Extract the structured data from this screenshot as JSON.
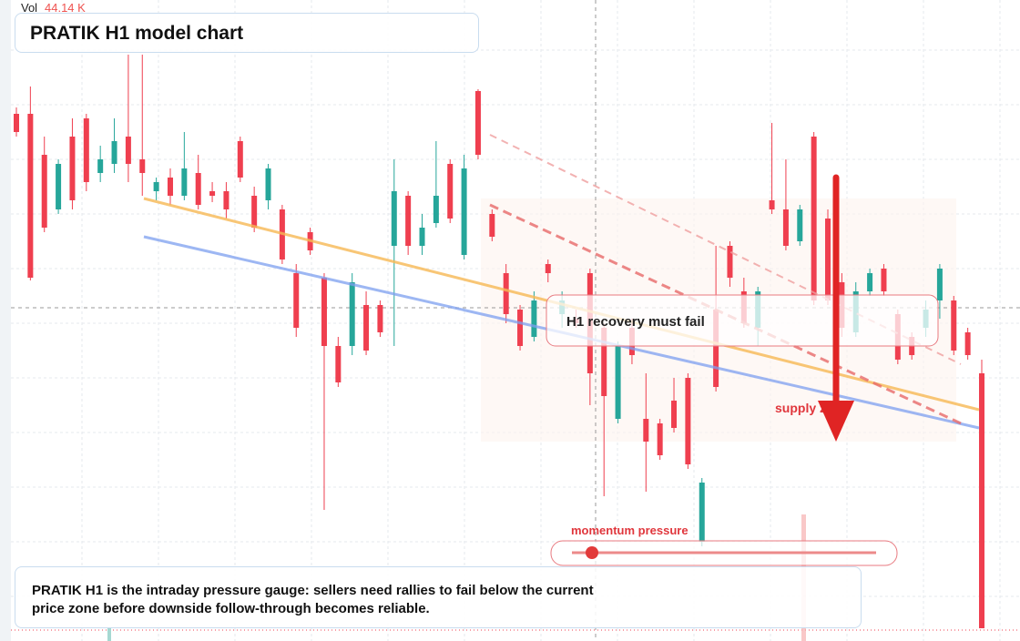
{
  "chart_data": {
    "type": "candlestick",
    "title": "PRATIK H1 model chart",
    "volume_label": "Vol",
    "volume_value": "44.14 K",
    "callout": "H1 recovery must fail",
    "zone_label": "supply zone",
    "gauge_label": "momentum pressure",
    "note": "PRATIK H1 is the intraday pressure gauge: sellers need rallies to fail below the current price zone before downside follow-through becomes reliable.",
    "up_color": "#26a69a",
    "down_color": "#ef3f4f",
    "ylim": [
      0,
      700
    ],
    "candles": [
      [
        575,
        582,
        550,
        555
      ],
      [
        575,
        605,
        392,
        395
      ],
      [
        530,
        550,
        445,
        450
      ],
      [
        470,
        525,
        465,
        520
      ],
      [
        550,
        570,
        470,
        480
      ],
      [
        570,
        575,
        490,
        500
      ],
      [
        510,
        540,
        500,
        525
      ],
      [
        520,
        570,
        510,
        545
      ],
      [
        550,
        640,
        500,
        520
      ],
      [
        525,
        640,
        485,
        510
      ],
      [
        490,
        505,
        480,
        500
      ],
      [
        505,
        515,
        475,
        485
      ],
      [
        485,
        555,
        480,
        515
      ],
      [
        510,
        530,
        470,
        475
      ],
      [
        490,
        500,
        478,
        485
      ],
      [
        490,
        500,
        460,
        470
      ],
      [
        545,
        550,
        500,
        505
      ],
      [
        485,
        495,
        445,
        450
      ],
      [
        480,
        520,
        470,
        515
      ],
      [
        470,
        475,
        410,
        415
      ],
      [
        400,
        410,
        330,
        340
      ],
      [
        445,
        450,
        420,
        425
      ],
      [
        395,
        400,
        140,
        320
      ],
      [
        320,
        330,
        275,
        280
      ],
      [
        320,
        400,
        310,
        390
      ],
      [
        365,
        380,
        310,
        315
      ],
      [
        365,
        370,
        330,
        335
      ],
      [
        430,
        525,
        320,
        490
      ],
      [
        485,
        490,
        420,
        430
      ],
      [
        430,
        465,
        420,
        450
      ],
      [
        455,
        545,
        450,
        485
      ],
      [
        520,
        525,
        455,
        460
      ],
      [
        420,
        530,
        415,
        515
      ],
      [
        600,
        602,
        525,
        530
      ],
      [
        465,
        470,
        435,
        440
      ],
      [
        400,
        410,
        345,
        355
      ],
      [
        360,
        365,
        315,
        320
      ],
      [
        330,
        380,
        325,
        370
      ],
      [
        410,
        415,
        390,
        400
      ],
      [
        355,
        380,
        340,
        370
      ],
      [
        350,
        360,
        340,
        345
      ],
      [
        400,
        405,
        255,
        290
      ],
      [
        340,
        345,
        155,
        265
      ],
      [
        240,
        325,
        235,
        320
      ],
      [
        340,
        350,
        300,
        310
      ],
      [
        240,
        290,
        160,
        215
      ],
      [
        235,
        240,
        195,
        200
      ],
      [
        260,
        285,
        225,
        230
      ],
      [
        285,
        290,
        185,
        190
      ],
      [
        105,
        175,
        100,
        170
      ],
      [
        360,
        430,
        270,
        275
      ],
      [
        430,
        435,
        385,
        395
      ],
      [
        380,
        395,
        340,
        345
      ],
      [
        340,
        385,
        320,
        380
      ],
      [
        480,
        565,
        465,
        470
      ],
      [
        470,
        525,
        425,
        430
      ],
      [
        435,
        475,
        430,
        470
      ],
      [
        550,
        555,
        365,
        370
      ],
      [
        460,
        470,
        365,
        370
      ],
      [
        390,
        400,
        330,
        340
      ],
      [
        335,
        390,
        330,
        380
      ],
      [
        380,
        405,
        375,
        400
      ],
      [
        405,
        410,
        375,
        380
      ],
      [
        355,
        360,
        300,
        305
      ],
      [
        330,
        335,
        305,
        310
      ],
      [
        340,
        370,
        330,
        360
      ],
      [
        370,
        410,
        350,
        405
      ],
      [
        370,
        375,
        310,
        315
      ],
      [
        335,
        340,
        305,
        310
      ],
      [
        290,
        305,
        10,
        10
      ]
    ]
  }
}
